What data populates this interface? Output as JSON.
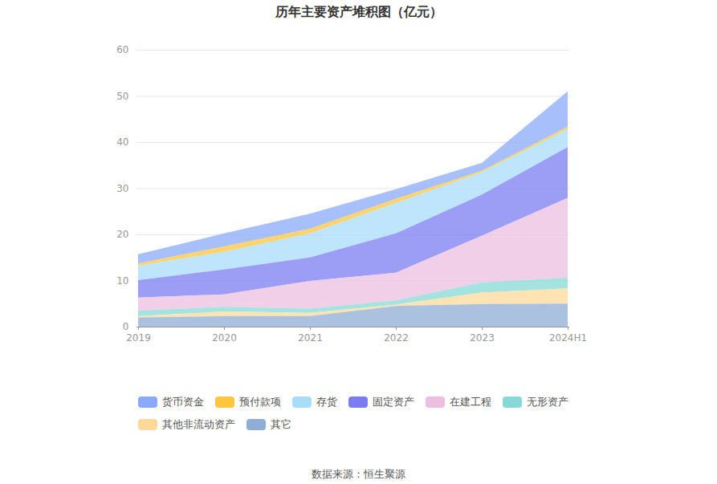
{
  "chart_data": {
    "type": "area",
    "stacked": true,
    "grid": true,
    "title": "历年主要资产堆积图（亿元）",
    "source": "数据来源：恒生聚源",
    "categories": [
      "2019",
      "2020",
      "2021",
      "2022",
      "2023",
      "2024H1"
    ],
    "ylim": [
      0,
      60
    ],
    "yticks": [
      0,
      10,
      20,
      30,
      40,
      50,
      60
    ],
    "legend": "bottom",
    "series": [
      {
        "name": "货币资金",
        "color": "#8aa9f8",
        "values": [
          2.0,
          2.8,
          3.3,
          2.1,
          1.7,
          7.7
        ]
      },
      {
        "name": "预付款项",
        "color": "#ffc53d",
        "values": [
          0.5,
          1.2,
          1.0,
          0.9,
          0.3,
          0.5
        ]
      },
      {
        "name": "存货",
        "color": "#a8dcfa",
        "values": [
          3.1,
          3.8,
          5.2,
          6.6,
          4.9,
          3.9
        ]
      },
      {
        "name": "固定资产",
        "color": "#7b7cf0",
        "values": [
          3.8,
          5.4,
          5.1,
          8.5,
          8.9,
          11.0
        ]
      },
      {
        "name": "在建工程",
        "color": "#ecbfe0",
        "values": [
          2.8,
          2.7,
          6.0,
          6.0,
          10.1,
          17.3
        ]
      },
      {
        "name": "无形资产",
        "color": "#86d9d6",
        "values": [
          1.2,
          1.0,
          0.9,
          0.9,
          2.2,
          2.3
        ]
      },
      {
        "name": "其他非流动资产",
        "color": "#ffd99a",
        "values": [
          0.3,
          1.0,
          0.7,
          0.3,
          2.5,
          3.3
        ]
      },
      {
        "name": "其它",
        "color": "#8eaed6",
        "values": [
          2.0,
          2.3,
          2.3,
          4.5,
          4.9,
          5.0
        ]
      }
    ]
  }
}
